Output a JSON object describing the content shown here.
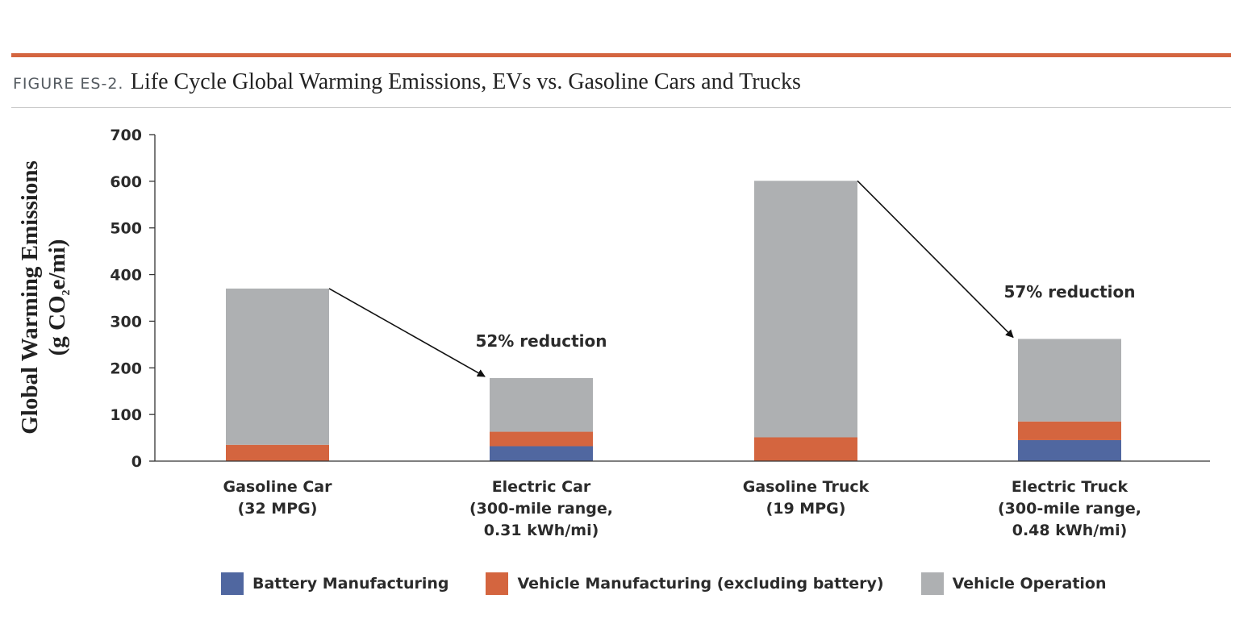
{
  "header": {
    "figure_label": "FIGURE ES-2.",
    "title": "Life Cycle Global Warming Emissions, EVs vs. Gasoline Cars and Trucks"
  },
  "chart_data": {
    "type": "bar",
    "stacked": true,
    "title": "Life Cycle Global Warming Emissions, EVs vs. Gasoline Cars and Trucks",
    "ylabel_line1": "Global Warming Emissions",
    "ylabel_line2_pre": "(g CO",
    "ylabel_line2_sub": "2",
    "ylabel_line2_post": "e/mi)",
    "ylim": [
      0,
      700
    ],
    "yticks": [
      0,
      100,
      200,
      300,
      400,
      500,
      600,
      700
    ],
    "grid": false,
    "legend_position": "bottom",
    "categories": [
      [
        "Gasoline Car",
        "(32 MPG)"
      ],
      [
        "Electric Car",
        "(300-mile range,",
        "0.31 kWh/mi)"
      ],
      [
        "Gasoline Truck",
        "(19 MPG)"
      ],
      [
        "Electric Truck",
        "(300-mile range,",
        "0.48 kWh/mi)"
      ]
    ],
    "series": [
      {
        "name": "Battery Manufacturing",
        "color": "#5067a0",
        "values": [
          0,
          32,
          0,
          45
        ]
      },
      {
        "name": "Vehicle Manufacturing (excluding battery)",
        "color": "#d4653f",
        "values": [
          35,
          31,
          51,
          40
        ]
      },
      {
        "name": "Vehicle Operation",
        "color": "#aeb0b2",
        "values": [
          335,
          115,
          550,
          177
        ]
      }
    ],
    "annotations": [
      {
        "text": "52% reduction",
        "from_category": 0,
        "to_category": 1
      },
      {
        "text": "57% reduction",
        "from_category": 2,
        "to_category": 3
      }
    ]
  }
}
